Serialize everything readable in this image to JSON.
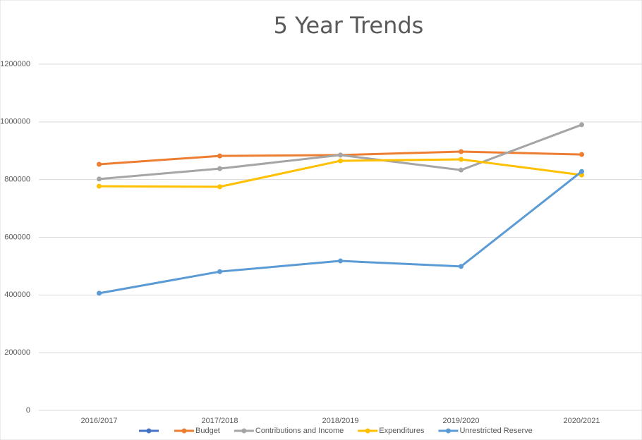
{
  "chart_data": {
    "type": "line",
    "title": "5 Year Trends",
    "categories": [
      "2016/2017",
      "2017/2018",
      "2018/2019",
      "2019/2020",
      "2020/2021"
    ],
    "series": [
      {
        "color": "#4472c4",
        "values": [
          null,
          null,
          null,
          null,
          null
        ]
      },
      {
        "name": "Budget",
        "color": "#ed7d31",
        "values": [
          853000,
          882000,
          885000,
          897000,
          887000
        ]
      },
      {
        "name": "Contributions and Income",
        "color": "#a5a5a5",
        "values": [
          802000,
          838000,
          885000,
          833000,
          990000
        ]
      },
      {
        "name": "Expenditures",
        "color": "#ffc000",
        "values": [
          777000,
          775000,
          865000,
          870000,
          816000
        ]
      },
      {
        "name": "Unrestricted Reserve",
        "color": "#5b9bd5",
        "values": [
          406000,
          481000,
          518000,
          499000,
          828000
        ]
      }
    ],
    "ylim": [
      0,
      1200000
    ],
    "yticks": [
      0,
      200000,
      400000,
      600000,
      800000,
      1000000,
      1200000
    ],
    "grid": true,
    "legend": "bottom"
  }
}
